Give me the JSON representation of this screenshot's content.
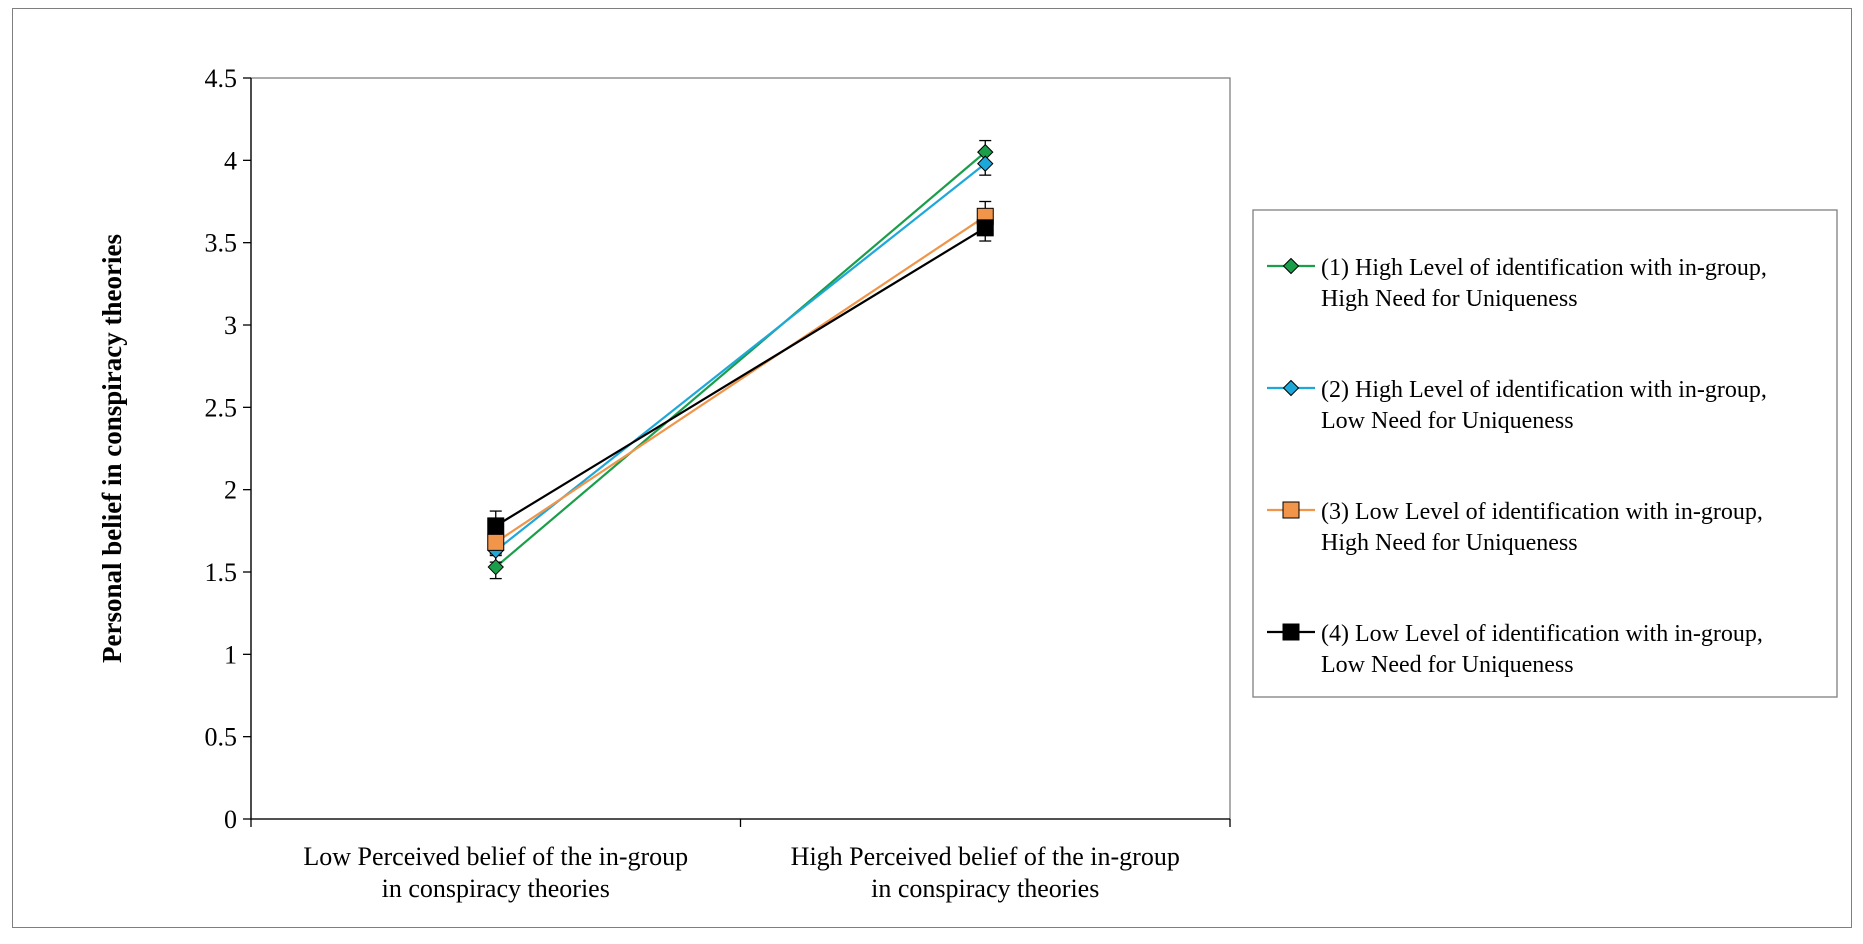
{
  "chart_data": {
    "type": "line",
    "title": "",
    "xlabel": "",
    "ylabel": "Personal belief in conspiracy theories",
    "ylim": [
      0,
      4.5
    ],
    "yticks": [
      "0",
      "0.5",
      "1",
      "1.5",
      "2",
      "2.5",
      "3",
      "3.5",
      "4",
      "4.5"
    ],
    "ytick_values": [
      0,
      0.5,
      1,
      1.5,
      2,
      2.5,
      3,
      3.5,
      4,
      4.5
    ],
    "categories": [
      [
        "Low Perceived belief of the in-group",
        "in conspiracy theories"
      ],
      [
        "High Perceived belief of the in-group",
        "in conspiracy theories"
      ]
    ],
    "grid": false,
    "legend_position": "right",
    "series": [
      {
        "name": "(1) High Level of identification with in-group, High Need for Uniqueness",
        "legend_lines": [
          "(1) High Level of identification with in-group,",
          "High Need for Uniqueness"
        ],
        "values": [
          1.53,
          4.05
        ],
        "errors": [
          0.07,
          0.07
        ],
        "color": "#1a9e4a",
        "fill": "#1a9e4a",
        "marker": "diamond"
      },
      {
        "name": "(2) High Level of identification with in-group, Low Need for Uniqueness",
        "legend_lines": [
          "(2) High Level of identification with in-group,",
          "Low Need for Uniqueness"
        ],
        "values": [
          1.63,
          3.98
        ],
        "errors": [
          0.07,
          0.07
        ],
        "color": "#1ea7d9",
        "fill": "#1ea7d9",
        "marker": "diamond"
      },
      {
        "name": "(3) Low Level of identification with in-group, High Need for Uniqueness",
        "legend_lines": [
          "(3) Low Level of identification with in-group,",
          "High Need for Uniqueness"
        ],
        "values": [
          1.68,
          3.66
        ],
        "errors": [
          0.07,
          0.09
        ],
        "color": "#f0954a",
        "fill": "#f0954a",
        "marker": "square"
      },
      {
        "name": "(4) Low Level of identification with in-group, Low Need for Uniqueness",
        "legend_lines": [
          "(4) Low Level of identification with in-group,",
          "Low Need for Uniqueness"
        ],
        "values": [
          1.78,
          3.59
        ],
        "errors": [
          0.09,
          0.08
        ],
        "color": "#000000",
        "fill": "#000000",
        "marker": "square"
      }
    ]
  }
}
